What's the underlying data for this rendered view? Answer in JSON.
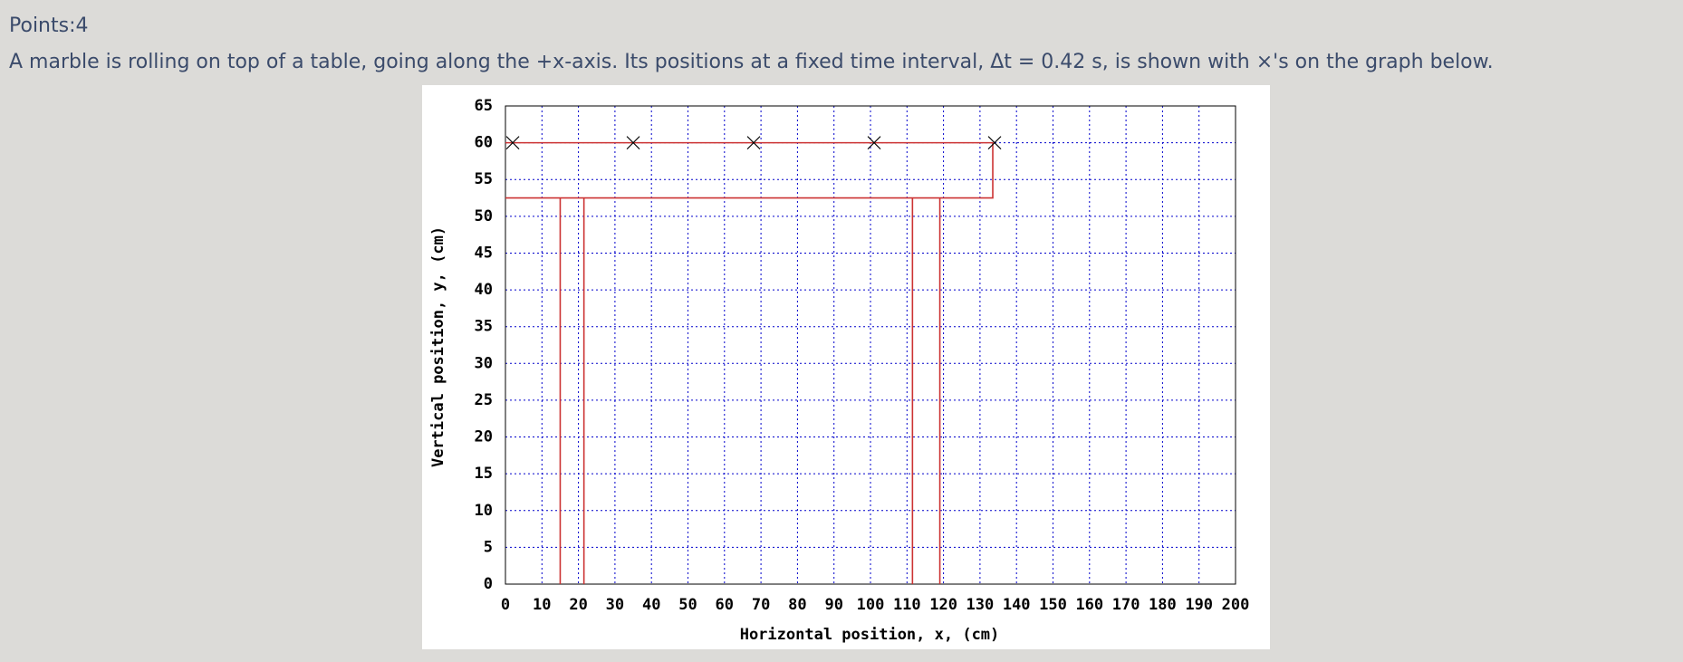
{
  "header": {
    "points": "Points:4"
  },
  "question": "A marble is rolling on top of a table, going along the +x-axis. Its positions at a fixed time interval, Δt = 0.42 s, is shown with ×'s on the graph below.",
  "chart_data": {
    "type": "scatter",
    "x_label": "Horizontal position, x, (cm)",
    "y_label": "Vertical position, y, (cm)",
    "xlim": [
      0,
      200
    ],
    "ylim": [
      0,
      65
    ],
    "xticks": [
      0,
      10,
      20,
      30,
      40,
      50,
      60,
      70,
      80,
      90,
      100,
      110,
      120,
      130,
      140,
      150,
      160,
      170,
      180,
      190,
      200
    ],
    "yticks": [
      0,
      5,
      10,
      15,
      20,
      25,
      30,
      35,
      40,
      45,
      50,
      55,
      60,
      65
    ],
    "grid": true,
    "grid_color": "#0000cc",
    "series": [
      {
        "type": "scatter",
        "color": "#000000",
        "x": [
          2,
          35,
          68,
          101,
          134
        ],
        "values": [
          60,
          60,
          60,
          60,
          60
        ]
      },
      {
        "type": "line",
        "color": "#cc3333",
        "x": [
          0,
          133.5,
          133.5,
          0,
          null,
          15,
          15,
          null,
          21.5,
          21.5,
          null,
          111.5,
          111.5,
          null,
          119,
          119
        ],
        "values": [
          60,
          60,
          52.5,
          52.5,
          null,
          0,
          52.5,
          null,
          52.5,
          0,
          null,
          0,
          52.5,
          null,
          52.5,
          0
        ]
      }
    ]
  }
}
